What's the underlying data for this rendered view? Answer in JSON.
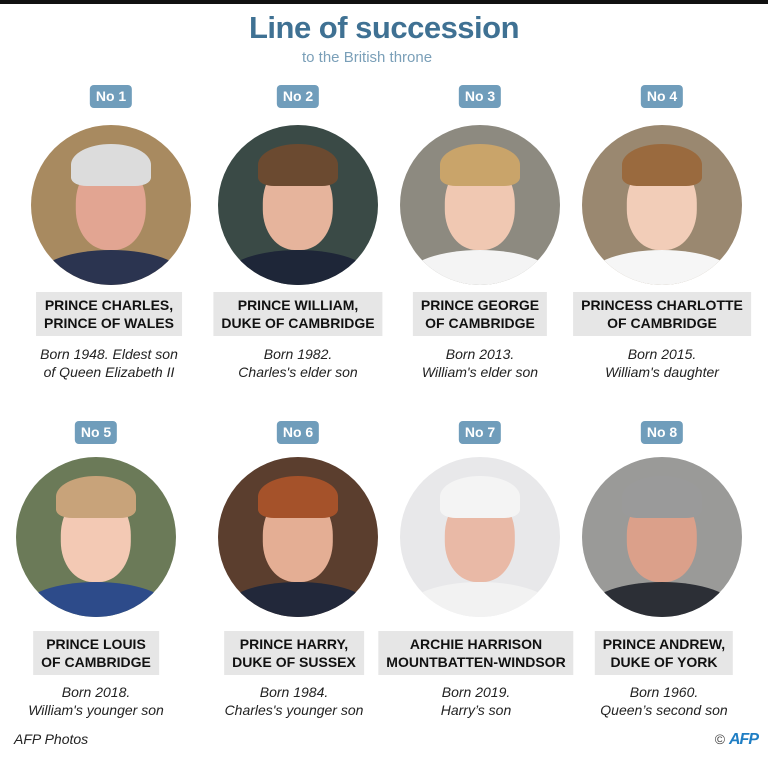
{
  "header": {
    "title": "Line of succession",
    "subtitle": "to the British throne"
  },
  "people": [
    {
      "rank": "No 1",
      "name1": "PRINCE CHARLES,",
      "name2": "PRINCE OF WALES",
      "desc1": "Born 1948. Eldest son",
      "desc2": "of Queen Elizabeth II",
      "photo": {
        "bg": "#a88a60",
        "skin": "#e2a592",
        "hair": "#dcdcdc",
        "body": "#2b3450"
      }
    },
    {
      "rank": "No 2",
      "name1": "PRINCE WILLIAM,",
      "name2": "DUKE OF CAMBRIDGE",
      "desc1": "Born 1982.",
      "desc2": "Charles's elder son",
      "photo": {
        "bg": "#3a4a46",
        "skin": "#e6b49c",
        "hair": "#6b4a30",
        "body": "#1e2638"
      }
    },
    {
      "rank": "No 3",
      "name1": "PRINCE GEORGE",
      "name2": "OF CAMBRIDGE",
      "desc1": "Born 2013.",
      "desc2": "William's elder son",
      "photo": {
        "bg": "#8d8a80",
        "skin": "#f0c8b2",
        "hair": "#c9a46a",
        "body": "#f4f4f4"
      }
    },
    {
      "rank": "No 4",
      "name1": "PRINCESS CHARLOTTE",
      "name2": "OF CAMBRIDGE",
      "desc1": "Born 2015.",
      "desc2": "William's daughter",
      "photo": {
        "bg": "#9a8870",
        "skin": "#f2cdb8",
        "hair": "#9a6a3e",
        "body": "#f6f6f6"
      }
    },
    {
      "rank": "No 5",
      "name1": "PRINCE LOUIS",
      "name2": "OF CAMBRIDGE",
      "desc1": "Born 2018.",
      "desc2": "William's younger son",
      "photo": {
        "bg": "#6b7a58",
        "skin": "#f3c9b4",
        "hair": "#c8a37a",
        "body": "#2d4b8a"
      }
    },
    {
      "rank": "No 6",
      "name1": "PRINCE HARRY,",
      "name2": "DUKE OF SUSSEX",
      "desc1": "Born 1984.",
      "desc2": "Charles's younger son",
      "photo": {
        "bg": "#5b3e2e",
        "skin": "#e4ae94",
        "hair": "#a5522a",
        "body": "#22283a"
      }
    },
    {
      "rank": "No 7",
      "name1": "ARCHIE HARRISON",
      "name2": "MOUNTBATTEN-WINDSOR",
      "desc1": "Born 2019.",
      "desc2": "Harry’s son",
      "photo": {
        "bg": "#e8e8ea",
        "skin": "#e9b9a6",
        "hair": "#f4f4f4",
        "body": "#f2f2f2"
      }
    },
    {
      "rank": "No 8",
      "name1": "PRINCE ANDREW,",
      "name2": "DUKE OF YORK",
      "desc1": "Born 1960.",
      "desc2": "Queen’s second son",
      "photo": {
        "bg": "#9a9a98",
        "skin": "#dba08a",
        "hair": "#9a9a9a",
        "body": "#2c2f36"
      }
    }
  ],
  "footer": {
    "credit": "AFP Photos",
    "copyright": "©",
    "logo": "AFP"
  },
  "colors": {
    "title": "#3f7193",
    "badge": "#709dbb",
    "namebox": "#e6e6e6"
  }
}
